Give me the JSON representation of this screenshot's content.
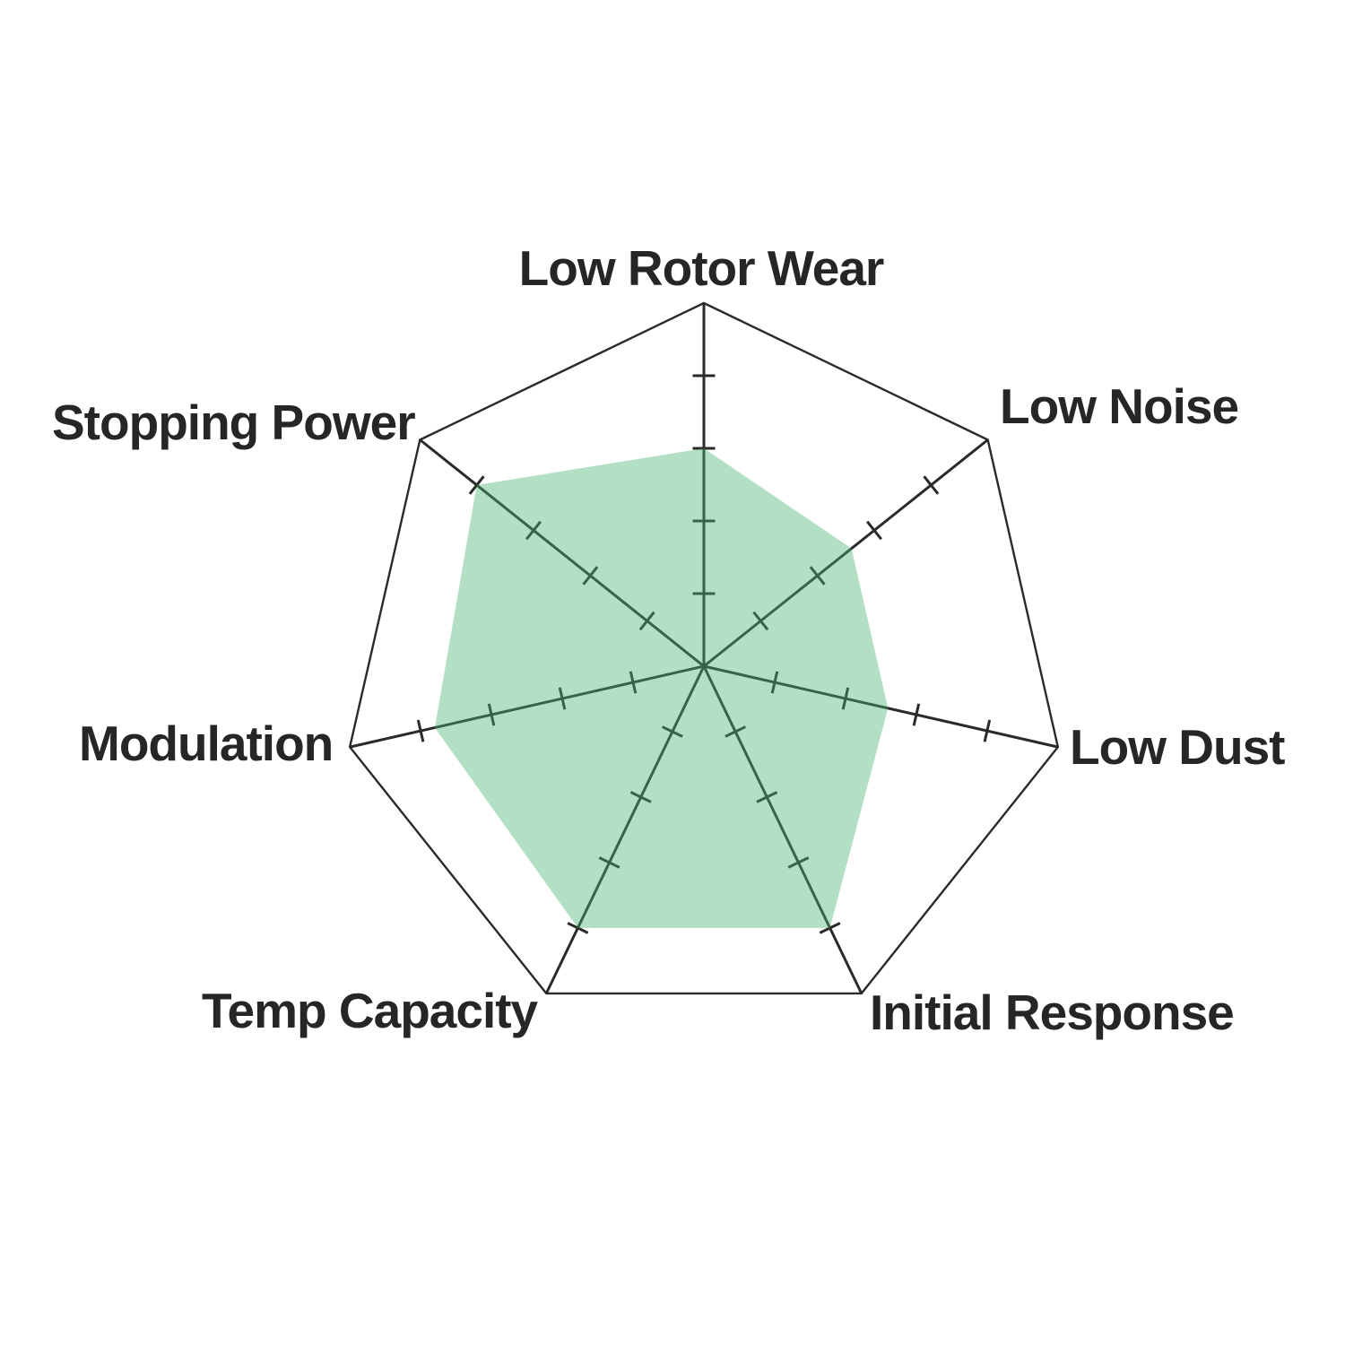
{
  "chart_data": {
    "type": "radar",
    "categories": [
      "Low Rotor Wear",
      "Low Noise",
      "Low Dust",
      "Initial Response",
      "Temp Capacity",
      "Modulation",
      "Stopping Power"
    ],
    "values": [
      3.0,
      2.6,
      2.6,
      4.0,
      4.0,
      3.8,
      4.0
    ],
    "scale": {
      "min": 0,
      "max": 5,
      "tick_interval": 1
    },
    "title": "",
    "legend": "none",
    "grid": "spokes-with-tick-marks",
    "fill_color_rgba": "rgba(74, 178, 115, 0.42)",
    "fill_color_over_white_hex": "#b3dfc6",
    "line_color": "#2a2a2a",
    "label_color": "#262626"
  },
  "labels": {
    "low_rotor_wear": "Low Rotor Wear",
    "low_noise": "Low Noise",
    "low_dust": "Low Dust",
    "initial_response": "Initial Response",
    "temp_capacity": "Temp Capacity",
    "modulation": "Modulation",
    "stopping_power": "Stopping Power"
  }
}
